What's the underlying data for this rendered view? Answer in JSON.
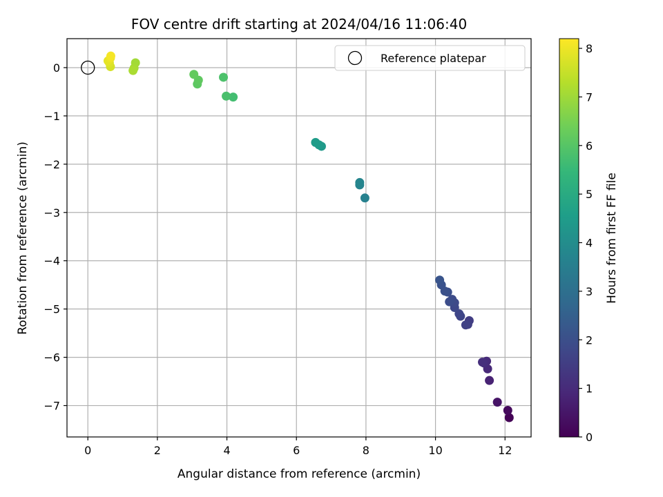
{
  "chart_data": {
    "type": "scatter",
    "title": "FOV centre drift starting at 2024/04/16 11:06:40",
    "xlabel": "Angular distance from reference (arcmin)",
    "ylabel": "Rotation from reference (arcmin)",
    "xlim": [
      -0.6,
      12.75
    ],
    "ylim": [
      -7.65,
      0.6
    ],
    "xticks": [
      0,
      2,
      4,
      6,
      8,
      10,
      12
    ],
    "xtick_labels": [
      "0",
      "2",
      "4",
      "6",
      "8",
      "10",
      "12"
    ],
    "yticks": [
      0,
      -1,
      -2,
      -3,
      -4,
      -5,
      -6,
      -7
    ],
    "ytick_labels": [
      "0",
      "−1",
      "−2",
      "−3",
      "−4",
      "−5",
      "−6",
      "−7"
    ],
    "grid": true,
    "legend": {
      "position": "top-right",
      "entries": [
        "Reference platepar"
      ]
    },
    "reference_point": {
      "x": 0,
      "y": 0
    },
    "colorbar": {
      "label": "Hours from first FF file",
      "range": [
        0,
        8.2
      ],
      "ticks": [
        0,
        1,
        2,
        3,
        4,
        5,
        6,
        7,
        8
      ],
      "tick_labels": [
        "0",
        "1",
        "2",
        "3",
        "4",
        "5",
        "6",
        "7",
        "8"
      ],
      "colormap": "viridis"
    },
    "points": [
      {
        "x": 12.12,
        "y": -7.25,
        "c": 0.05
      },
      {
        "x": 12.08,
        "y": -7.1,
        "c": 0.2
      },
      {
        "x": 11.78,
        "y": -6.93,
        "c": 0.45
      },
      {
        "x": 11.55,
        "y": -6.48,
        "c": 0.8
      },
      {
        "x": 11.5,
        "y": -6.24,
        "c": 0.95
      },
      {
        "x": 11.47,
        "y": -6.08,
        "c": 1.0
      },
      {
        "x": 11.4,
        "y": -6.12,
        "c": 1.05
      },
      {
        "x": 11.35,
        "y": -6.1,
        "c": 1.1
      },
      {
        "x": 10.97,
        "y": -5.24,
        "c": 1.5
      },
      {
        "x": 10.93,
        "y": -5.32,
        "c": 1.55
      },
      {
        "x": 10.87,
        "y": -5.33,
        "c": 1.6
      },
      {
        "x": 10.72,
        "y": -5.15,
        "c": 1.7
      },
      {
        "x": 10.68,
        "y": -5.1,
        "c": 1.75
      },
      {
        "x": 10.55,
        "y": -4.97,
        "c": 1.8
      },
      {
        "x": 10.55,
        "y": -4.87,
        "c": 1.85
      },
      {
        "x": 10.48,
        "y": -4.8,
        "c": 1.9
      },
      {
        "x": 10.4,
        "y": -4.85,
        "c": 1.95
      },
      {
        "x": 10.35,
        "y": -4.65,
        "c": 2.0
      },
      {
        "x": 10.27,
        "y": -4.63,
        "c": 2.05
      },
      {
        "x": 10.17,
        "y": -4.5,
        "c": 2.1
      },
      {
        "x": 10.12,
        "y": -4.4,
        "c": 2.15
      },
      {
        "x": 7.97,
        "y": -2.7,
        "c": 3.6
      },
      {
        "x": 7.82,
        "y": -2.43,
        "c": 3.7
      },
      {
        "x": 7.82,
        "y": -2.38,
        "c": 3.75
      },
      {
        "x": 6.72,
        "y": -1.63,
        "c": 4.4
      },
      {
        "x": 6.65,
        "y": -1.6,
        "c": 4.45
      },
      {
        "x": 6.55,
        "y": -1.55,
        "c": 4.5
      },
      {
        "x": 4.18,
        "y": -0.61,
        "c": 5.7
      },
      {
        "x": 3.98,
        "y": -0.59,
        "c": 5.8
      },
      {
        "x": 3.9,
        "y": -0.2,
        "c": 5.85
      },
      {
        "x": 3.15,
        "y": -0.34,
        "c": 6.1
      },
      {
        "x": 3.18,
        "y": -0.26,
        "c": 6.15
      },
      {
        "x": 3.05,
        "y": -0.14,
        "c": 6.2
      },
      {
        "x": 1.37,
        "y": 0.1,
        "c": 7.05
      },
      {
        "x": 1.33,
        "y": -0.01,
        "c": 7.1
      },
      {
        "x": 1.3,
        "y": -0.06,
        "c": 7.15
      },
      {
        "x": 0.65,
        "y": 0.02,
        "c": 7.7
      },
      {
        "x": 0.62,
        "y": 0.1,
        "c": 7.8
      },
      {
        "x": 0.58,
        "y": 0.14,
        "c": 7.9
      },
      {
        "x": 0.65,
        "y": 0.2,
        "c": 8.0
      },
      {
        "x": 0.66,
        "y": 0.24,
        "c": 8.1
      }
    ]
  }
}
